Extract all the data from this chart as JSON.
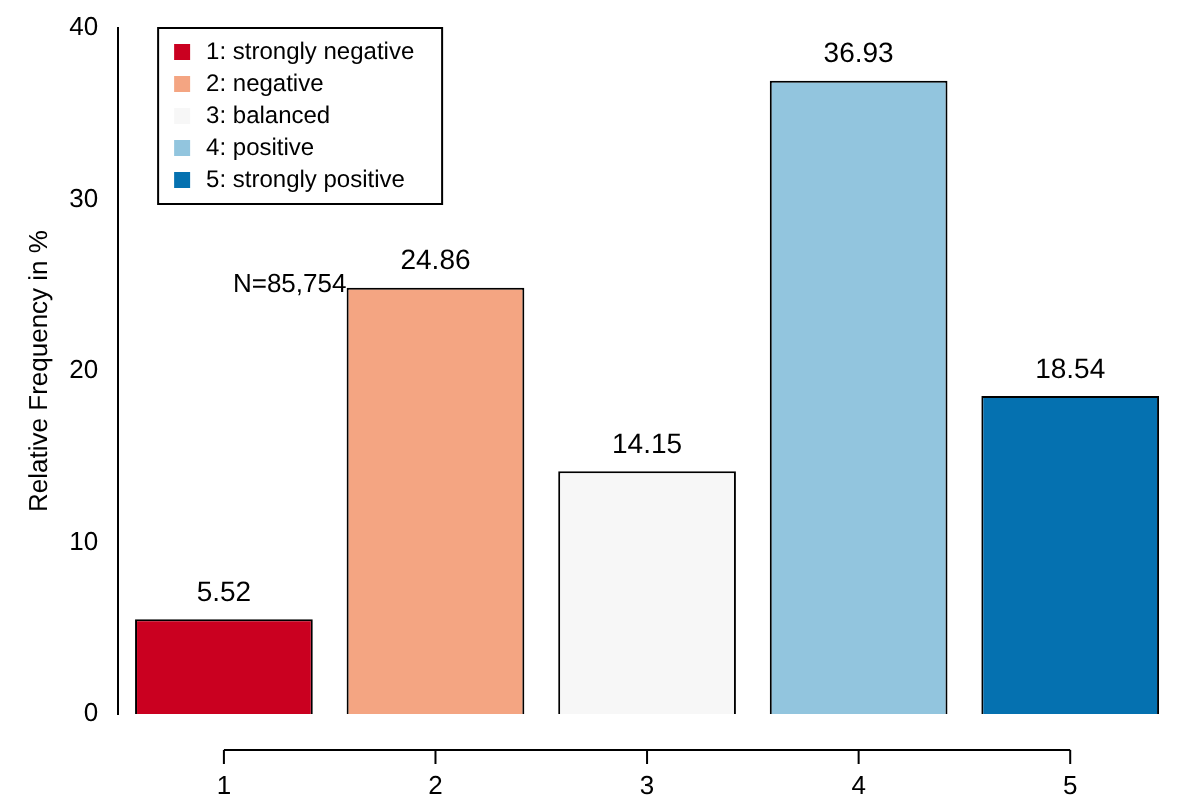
{
  "chart_data": {
    "type": "bar",
    "categories": [
      "1",
      "2",
      "3",
      "4",
      "5"
    ],
    "series": [
      {
        "name": "1: strongly negative",
        "color": "#ca0020",
        "values": [
          5.52,
          null,
          null,
          null,
          null
        ]
      },
      {
        "name": "2: negative",
        "color": "#f4a582",
        "values": [
          null,
          24.86,
          null,
          null,
          null
        ]
      },
      {
        "name": "3: balanced",
        "color": "#f7f7f7",
        "values": [
          null,
          null,
          14.15,
          null,
          null
        ]
      },
      {
        "name": "4: positive",
        "color": "#92c5de",
        "values": [
          null,
          null,
          null,
          36.93,
          null
        ]
      },
      {
        "name": "5: strongly positive",
        "color": "#0571b0",
        "values": [
          null,
          null,
          null,
          null,
          18.54
        ]
      }
    ],
    "ylabel": "Relative Frequency in %",
    "ylim": [
      0,
      40
    ],
    "yticks": [
      0,
      10,
      20,
      30,
      40
    ],
    "data_labels": true,
    "legend": "top left",
    "grid": false,
    "annotations": [
      "N=85,754"
    ]
  }
}
